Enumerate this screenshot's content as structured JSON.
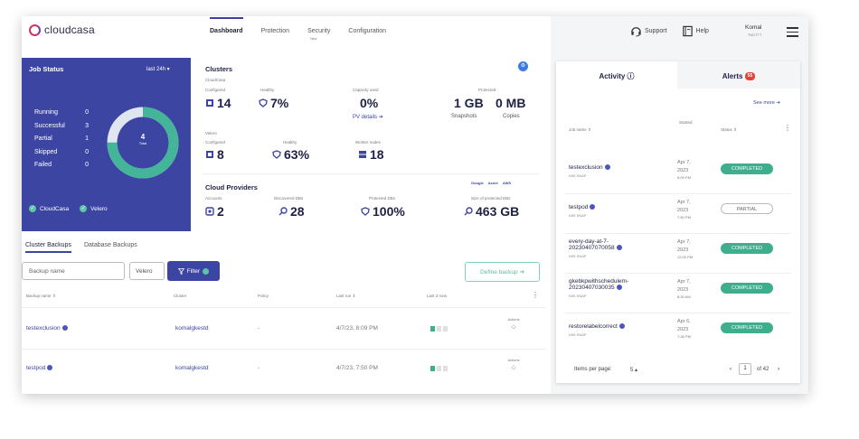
{
  "header": {
    "logo": "cloudcasa",
    "logo_sub": "INC",
    "nav": [
      "Dashboard",
      "Protection",
      "Security",
      "Configuration"
    ],
    "security_badge": "New",
    "support": "Support",
    "help": "Help",
    "user_name": "Komal",
    "user_org": "TNDTTT"
  },
  "job_status": {
    "title": "Job Status",
    "range": "last 24h ▾",
    "rows": [
      {
        "label": "Running",
        "value": "0"
      },
      {
        "label": "Successful",
        "value": "3"
      },
      {
        "label": "Partial",
        "value": "1"
      },
      {
        "label": "Skipped",
        "value": "0"
      },
      {
        "label": "Failed",
        "value": "0"
      }
    ],
    "total": "4",
    "total_label": "Total",
    "successful_fraction": 0.75,
    "filters": [
      "CloudCasa",
      "Velero"
    ]
  },
  "clusters": {
    "title": "Clusters",
    "cloudcasa_label": "CloudCasa",
    "velero_label": "Velero",
    "configured_label": "Configured",
    "healthy_label": "Healthy",
    "capacity_label": "Capacity used",
    "protected_label": "Protected",
    "worker_label": "Worker nodes",
    "cc_configured": "14",
    "cc_healthy": "7%",
    "capacity": "0%",
    "pv_details": "PV details ➔",
    "snapshots_value": "1 GB",
    "snapshots_label": "Snapshots",
    "copies_value": "0 MB",
    "copies_label": "Copies",
    "v_configured": "8",
    "v_healthy": "63%",
    "worker_nodes": "18"
  },
  "cloud_providers": {
    "title": "Cloud Providers",
    "logos": [
      "Google",
      "Azure",
      "AWS"
    ],
    "accounts_label": "Accounts",
    "discovered_label": "Discovered DBs",
    "protected_label": "Protected DBs",
    "size_label": "Size of protected DBs",
    "accounts": "2",
    "discovered": "28",
    "protected": "100%",
    "size": "463 GB"
  },
  "backups": {
    "tabs": [
      "Cluster Backups",
      "Database Backups"
    ],
    "search_placeholder": "Backup name",
    "velero": "Velero",
    "filter": "Filter",
    "define": "Define backup ➔",
    "columns": [
      "Backup name ⇕",
      "Cluster",
      "Policy",
      "Last run ⇕",
      "Last 3 runs"
    ],
    "actions_label": "Actions",
    "rows": [
      {
        "name": "testexclusion",
        "cluster": "komalgkestd",
        "policy": "-",
        "last_run": "4/7/23, 8:09 PM"
      },
      {
        "name": "testpod",
        "cluster": "komalgkestd",
        "policy": "-",
        "last_run": "4/7/23, 7:50 PM"
      }
    ]
  },
  "activity": {
    "tab_activity": "Activity ⓘ",
    "tab_alerts": "Alerts",
    "alerts_count": "55",
    "see_more": "See more ➔",
    "columns": [
      "Job name ⇕",
      "Started",
      "Status ⇕"
    ],
    "rows": [
      {
        "name": "testexclusion",
        "type": "K8S SNAP",
        "date": "Apr 7,",
        "year": "2023",
        "time": "8:09 PM",
        "status": "COMPLETED"
      },
      {
        "name": "testpod",
        "type": "K8S SNAP",
        "date": "Apr 7,",
        "year": "2023",
        "time": "7:50 PM",
        "status": "PARTIAL"
      },
      {
        "name": "every-day-at-7-",
        "name2": "20230407070058",
        "type": "K8S SNAP",
        "date": "Apr 7,",
        "year": "2023",
        "time": "12:00 PM",
        "status": "COMPLETED"
      },
      {
        "name": "gkebkpwithschedulem-",
        "name2": "20230407030035",
        "type": "K8S SNAP",
        "date": "Apr 7,",
        "year": "2023",
        "time": "8:30 AM",
        "status": "COMPLETED"
      },
      {
        "name": "restorelabelcorrect",
        "type": "K8S SNAP",
        "date": "Apr 6,",
        "year": "2023",
        "time": "7:38 PM",
        "status": "COMPLETED"
      }
    ],
    "items_per_page": "Items per page:",
    "per_page_value": "5 ▴",
    "page": "1",
    "of_pages": "of 42"
  }
}
